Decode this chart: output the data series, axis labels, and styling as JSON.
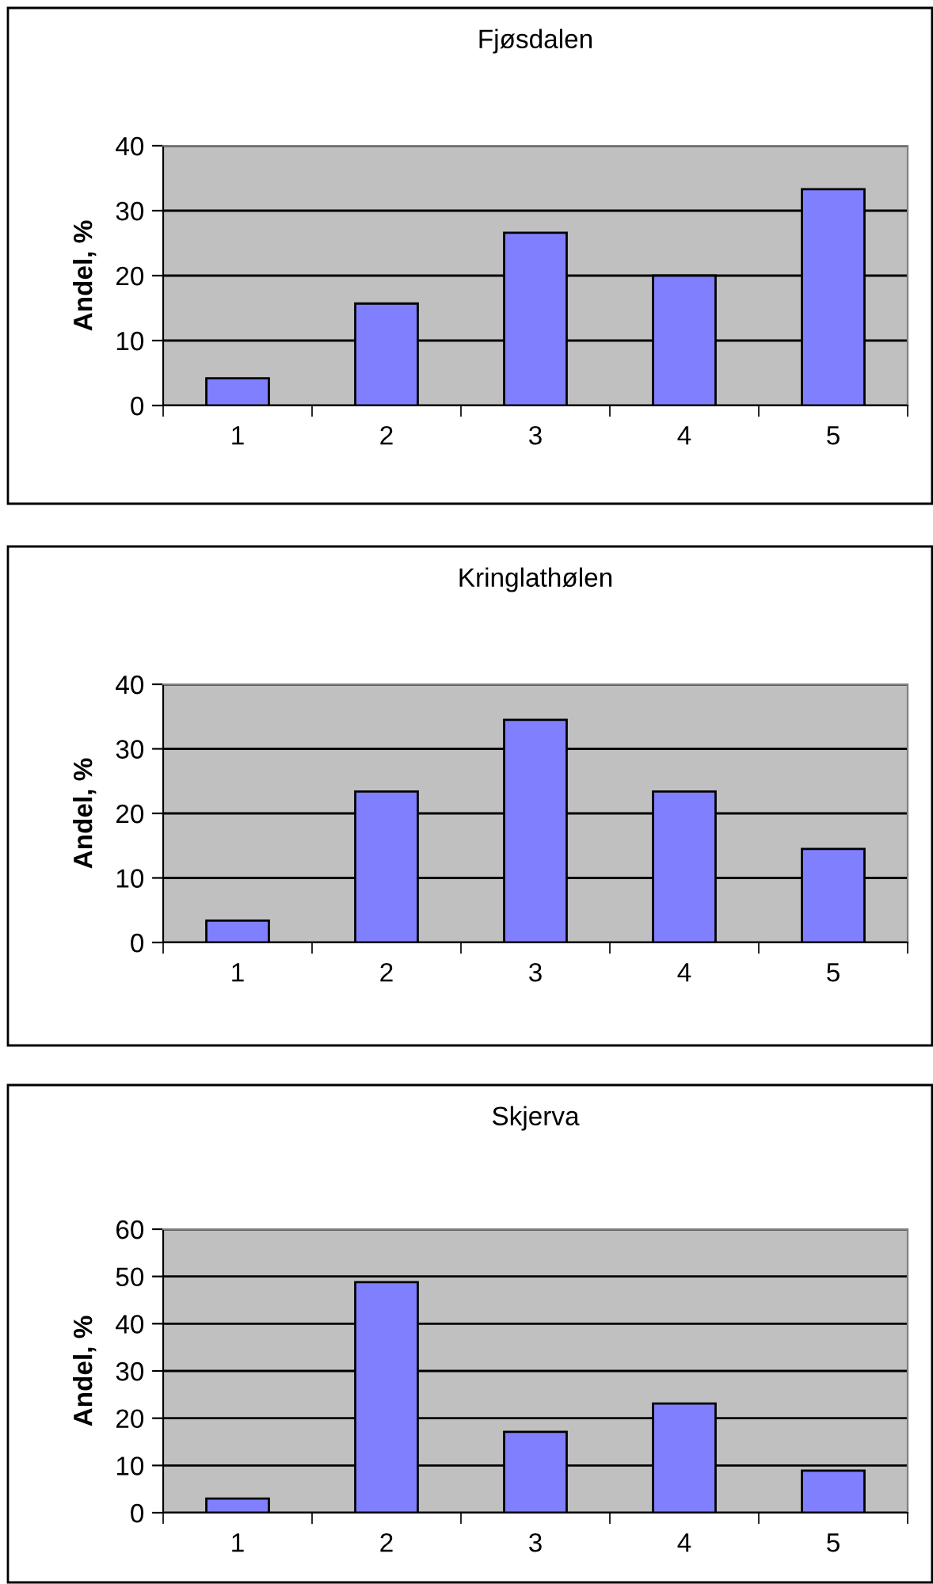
{
  "chart_data": [
    {
      "type": "bar",
      "title": "Fjøsdalen",
      "ylabel": "Andel, %",
      "categories": [
        "1",
        "2",
        "3",
        "4",
        "5"
      ],
      "values": [
        4.2,
        15.7,
        26.6,
        20,
        33.3
      ],
      "color": "#8080ff",
      "ylim": [
        0,
        40
      ],
      "yticks": [
        0,
        10,
        20,
        30,
        40
      ],
      "grid": "y"
    },
    {
      "type": "bar",
      "title": "Kringlathølen",
      "ylabel": "Andel, %",
      "categories": [
        "1",
        "2",
        "3",
        "4",
        "5"
      ],
      "values": [
        3.4,
        23.4,
        34.5,
        23.4,
        14.5
      ],
      "color": "#8080ff",
      "ylim": [
        0,
        40
      ],
      "yticks": [
        0,
        10,
        20,
        30,
        40
      ],
      "grid": "y"
    },
    {
      "type": "bar",
      "title": "Skjerva",
      "ylabel": "Andel, %",
      "categories": [
        "1",
        "2",
        "3",
        "4",
        "5"
      ],
      "values": [
        3.0,
        48.8,
        17.1,
        23.1,
        8.9
      ],
      "color": "#8080ff",
      "ylim": [
        0,
        60
      ],
      "yticks": [
        0,
        10,
        20,
        30,
        40,
        50,
        60
      ],
      "grid": "y"
    }
  ]
}
